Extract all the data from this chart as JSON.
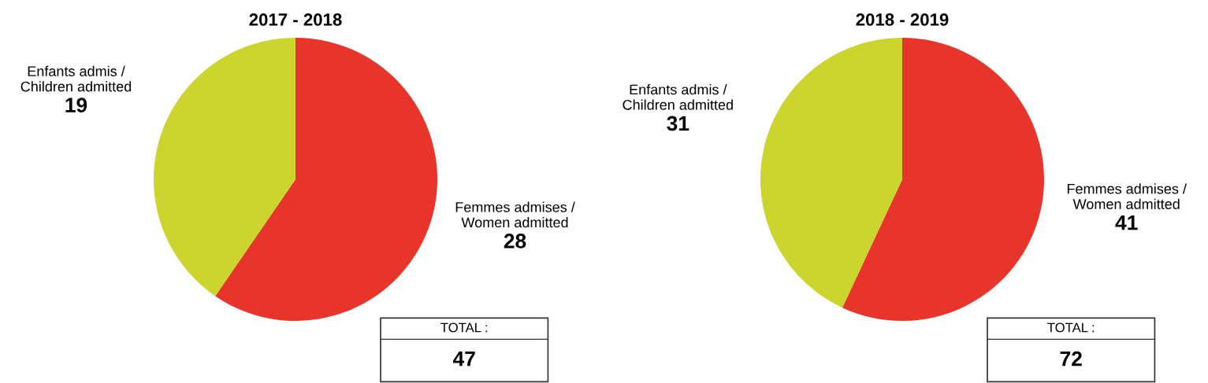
{
  "chart_data": [
    {
      "type": "pie",
      "title": "2017 - 2018",
      "categories": [
        "Femmes admises /\nWomen admitted",
        "Enfants admis /\nChildren admitted"
      ],
      "values": [
        28,
        19
      ],
      "colors": [
        "#e8352b",
        "#cbd52e"
      ],
      "data_labels": true,
      "legend": false,
      "annotations": [
        "TOTAL :",
        "47"
      ]
    },
    {
      "type": "pie",
      "title": "2018 - 2019",
      "categories": [
        "Femmes admises /\nWomen admitted",
        "Enfants admis /\nChildren admitted"
      ],
      "values": [
        41,
        31
      ],
      "colors": [
        "#e8352b",
        "#cbd52e"
      ],
      "data_labels": true,
      "legend": false,
      "annotations": [
        "TOTAL :",
        "72"
      ]
    }
  ]
}
